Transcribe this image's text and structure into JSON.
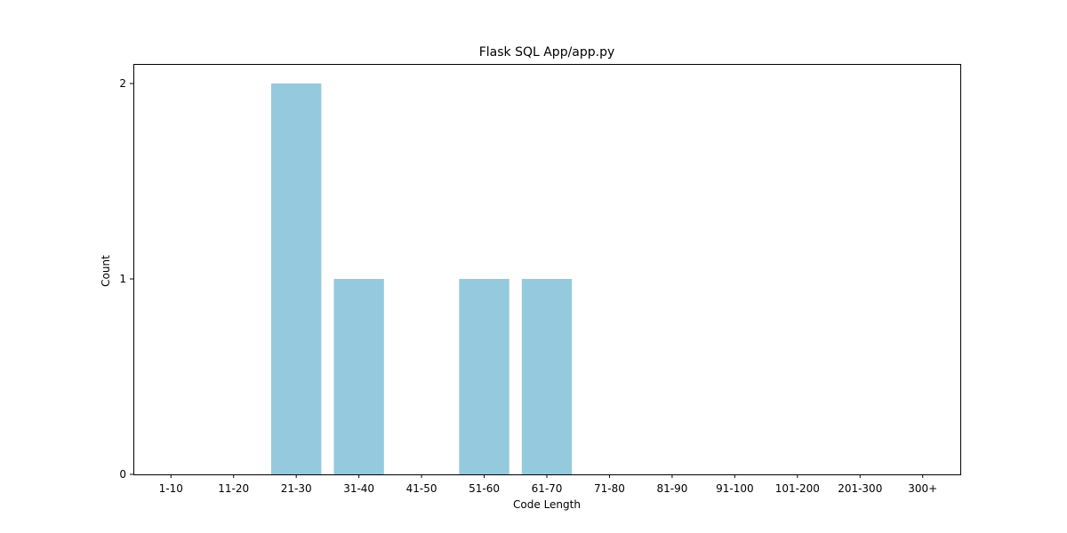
{
  "chart_data": {
    "type": "bar",
    "title": "Flask SQL App/app.py",
    "xlabel": "Code Length",
    "ylabel": "Count",
    "categories": [
      "1-10",
      "11-20",
      "21-30",
      "31-40",
      "41-50",
      "51-60",
      "61-70",
      "71-80",
      "81-90",
      "91-100",
      "101-200",
      "201-300",
      "300+"
    ],
    "values": [
      0,
      0,
      2,
      1,
      0,
      1,
      1,
      0,
      0,
      0,
      0,
      0,
      0
    ],
    "ylim": [
      0,
      2.1
    ],
    "yticks": [
      0,
      1,
      2
    ],
    "grid": false,
    "bar_color": "#95c9de"
  }
}
